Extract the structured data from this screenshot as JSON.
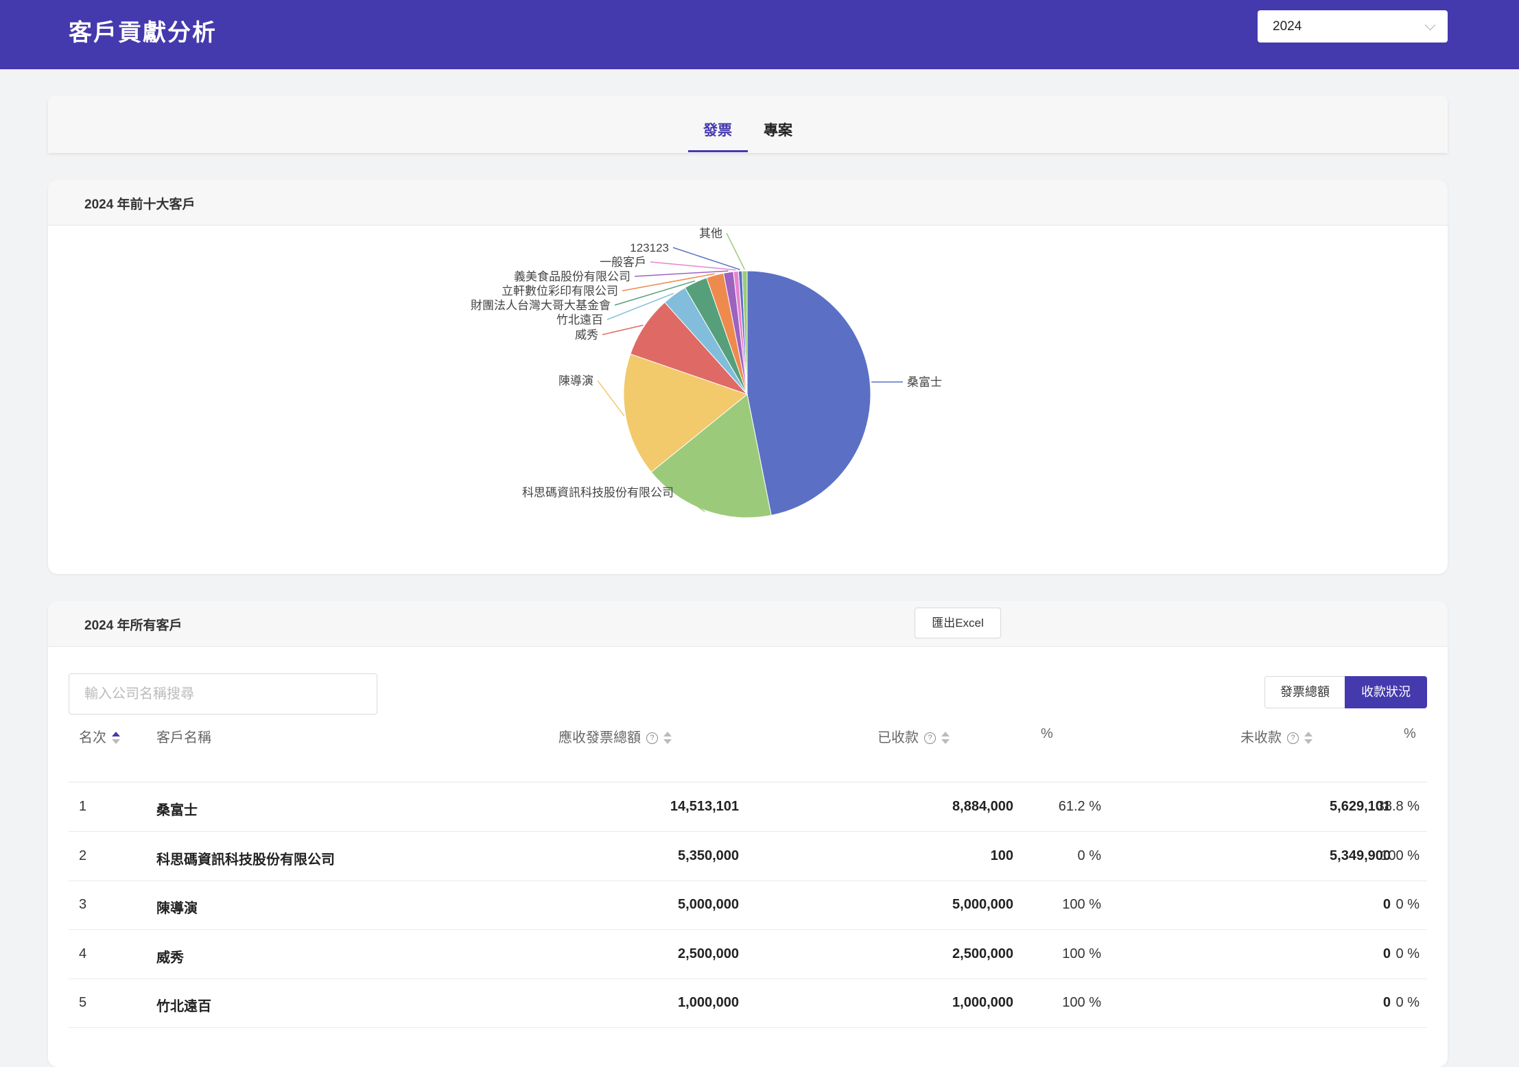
{
  "header": {
    "title": "客戶貢獻分析",
    "year_select": "2024"
  },
  "tabs": [
    {
      "label": "發票",
      "active": true
    },
    {
      "label": "專案",
      "active": false
    }
  ],
  "top10": {
    "title": "2024 年前十大客戶",
    "chart_data": {
      "type": "pie",
      "labels": [
        "桑富士",
        "科思碼資訊科技股份有限公司",
        "陳導演",
        "威秀",
        "竹北遠百",
        "財團法人台灣大哥大基金會",
        "立軒數位彩印有限公司",
        "義美食品股份有限公司",
        "一般客戶",
        "123123",
        "其他"
      ],
      "values": [
        14513101,
        5350000,
        5000000,
        2500000,
        1000000,
        950000,
        700000,
        400000,
        200000,
        150000,
        200000
      ],
      "colors": [
        "#5b70c4",
        "#9bcb7a",
        "#f2c96b",
        "#df6a65",
        "#82bddb",
        "#55a07a",
        "#ee8a4e",
        "#9d62c0",
        "#e685ce",
        "#5b70c4",
        "#9bcb7a"
      ]
    }
  },
  "all": {
    "title": "2024 年所有客戶",
    "export_label": "匯出Excel",
    "search_placeholder": "輸入公司名稱搜尋",
    "toggle": {
      "off": "發票總額",
      "on": "收款狀況"
    },
    "columns": {
      "rank": "名次",
      "name": "客戶名稱",
      "invoice_total": "應收發票總額",
      "received": "已收款",
      "pct1": "%",
      "unreceived": "未收款",
      "pct2": "%"
    },
    "rows": [
      {
        "rank": "1",
        "name": "桑富士",
        "invoice_total": "14,513,101",
        "received": "8,884,000",
        "pct1": "61.2 %",
        "unreceived": "5,629,101",
        "pct2": "38.8 %"
      },
      {
        "rank": "2",
        "name": "科思碼資訊科技股份有限公司",
        "invoice_total": "5,350,000",
        "received": "100",
        "pct1": "0 %",
        "unreceived": "5,349,900",
        "pct2": "100 %"
      },
      {
        "rank": "3",
        "name": "陳導演",
        "invoice_total": "5,000,000",
        "received": "5,000,000",
        "pct1": "100 %",
        "unreceived": "0",
        "pct2": "0 %"
      },
      {
        "rank": "4",
        "name": "威秀",
        "invoice_total": "2,500,000",
        "received": "2,500,000",
        "pct1": "100 %",
        "unreceived": "0",
        "pct2": "0 %"
      },
      {
        "rank": "5",
        "name": "竹北遠百",
        "invoice_total": "1,000,000",
        "received": "1,000,000",
        "pct1": "100 %",
        "unreceived": "0",
        "pct2": "0 %"
      }
    ]
  }
}
